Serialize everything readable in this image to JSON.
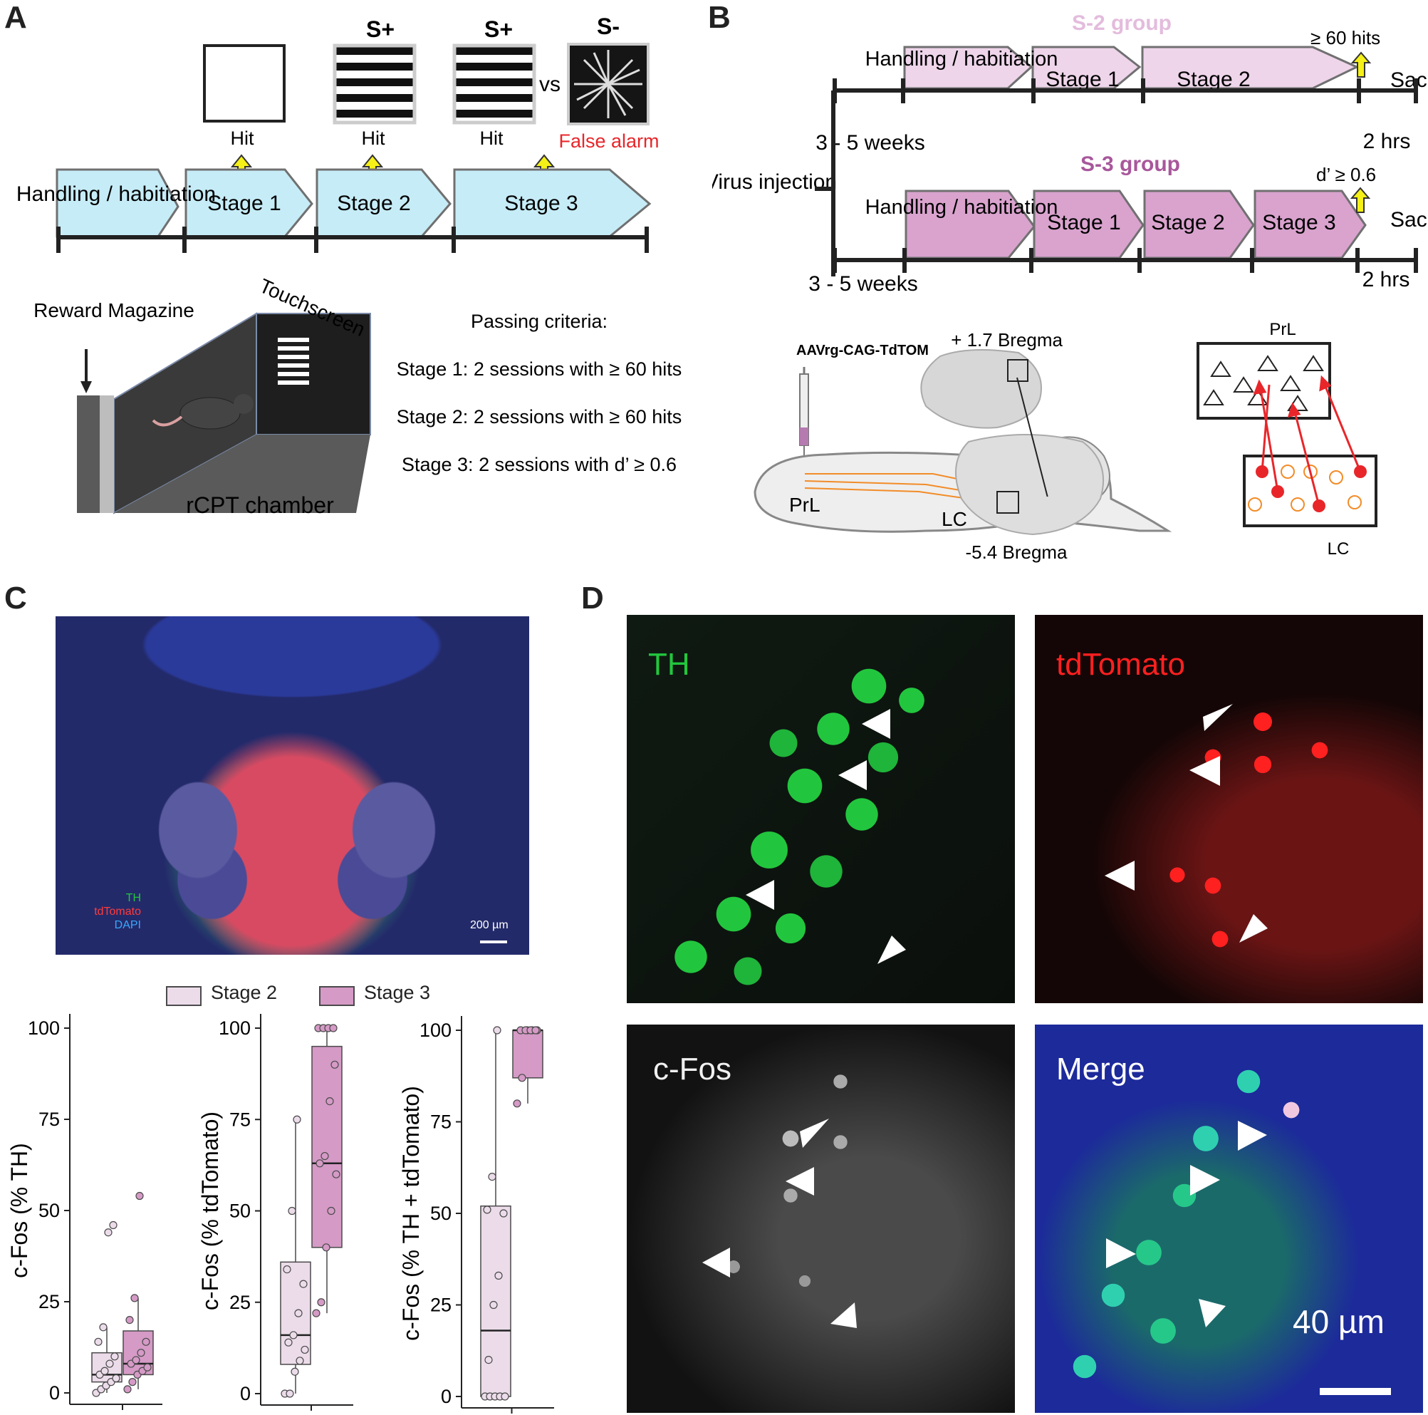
{
  "panels": {
    "a": "A",
    "b": "B",
    "c": "C",
    "d": "D"
  },
  "panelA": {
    "stimuli": [
      {
        "top_label": "",
        "bottom_label": "Hit"
      },
      {
        "top_label": "S+",
        "bottom_label": "Hit"
      },
      {
        "top_label": "S+",
        "bottom_label": "Hit"
      },
      {
        "top_label": "S-",
        "bottom_label": "False alarm"
      }
    ],
    "vs": "vs",
    "stages": [
      "Handling / habitiation",
      "Stage 1",
      "Stage 2",
      "Stage 3"
    ],
    "reward_label": "Reward Magazine",
    "touchscreen_label": "Touchscreen",
    "chamber_label": "rCPT chamber",
    "criteria_title": "Passing criteria:",
    "criteria": [
      "Stage 1: 2 sessions with ≥ 60 hits",
      "Stage 2: 2 sessions with ≥ 60 hits",
      "Stage 3: 2 sessions with d’ ≥ 0.6"
    ],
    "colors": {
      "stage_fill": "#c6ecf7",
      "arrow": "#f5f017",
      "false_alarm": "#e8262a"
    }
  },
  "panelB": {
    "s2_group": {
      "title": "S-2 group",
      "stages": [
        "Handling / habitiation",
        "Stage 1",
        "Stage 2"
      ],
      "criterion": "≥ 60 hits",
      "end": "Sac",
      "after": "2 hrs",
      "delay": "3 - 5 weeks"
    },
    "s3_group": {
      "title": "S-3 group",
      "stages": [
        "Handling / habitiation",
        "Stage 1",
        "Stage 2",
        "Stage 3"
      ],
      "criterion": "d’ ≥ 0.6",
      "end": "Sac",
      "after": "2 hrs",
      "delay": "3 - 5 weeks"
    },
    "virus": "Virus injection",
    "aav": "AAVrg-CAG-TdTOM",
    "prl": "PrL",
    "lc": "LC",
    "bregma_top": "+ 1.7 Bregma",
    "bregma_bottom": "-5.4 Bregma",
    "colors": {
      "s2": "#eed5ea",
      "s3": "#d9a3ce",
      "s2_title": "#e3bcdd",
      "s3_title": "#a8579b",
      "projection": "#e8262a",
      "tracer": "#f28c28"
    }
  },
  "panelC": {
    "channels": [
      "TH",
      "tdTomato",
      "DAPI"
    ],
    "scale": "200 µm",
    "legend": [
      "Stage 2",
      "Stage 3"
    ],
    "colors": {
      "stage2": "#ecdcea",
      "stage3": "#d59ac6",
      "stroke": "#4a4a4a"
    }
  },
  "chart_data": [
    {
      "type": "box",
      "ylabel": "c-Fos (% TH)",
      "ylim": [
        0,
        100
      ],
      "yticks": [
        0,
        25,
        50,
        75,
        100
      ],
      "series": [
        {
          "name": "Stage 2",
          "min": 0,
          "q1": 3,
          "median": 5,
          "q3": 11,
          "max": 18,
          "points": [
            0,
            1,
            2,
            3,
            4,
            5,
            6,
            8,
            10,
            14,
            18,
            44,
            46
          ]
        },
        {
          "name": "Stage 3",
          "min": 1,
          "q1": 5,
          "median": 8,
          "q3": 17,
          "max": 26,
          "points": [
            1,
            3,
            5,
            6,
            7,
            8,
            9,
            11,
            14,
            20,
            26,
            54
          ]
        }
      ]
    },
    {
      "type": "box",
      "ylabel": "c-Fos (% tdTomato)",
      "ylim": [
        0,
        100
      ],
      "yticks": [
        0,
        25,
        50,
        75,
        100
      ],
      "series": [
        {
          "name": "Stage 2",
          "min": 0,
          "q1": 8,
          "median": 16,
          "q3": 36,
          "max": 75,
          "points": [
            0,
            0,
            6,
            9,
            12,
            14,
            16,
            22,
            30,
            34,
            50,
            75
          ]
        },
        {
          "name": "Stage 3",
          "min": 22,
          "q1": 40,
          "median": 63,
          "q3": 95,
          "max": 100,
          "points": [
            22,
            25,
            40,
            50,
            60,
            63,
            65,
            80,
            90,
            100,
            100,
            100,
            100
          ]
        }
      ]
    },
    {
      "type": "box",
      "ylabel": "c-Fos (% TH + tdTomato)",
      "ylim": [
        0,
        100
      ],
      "yticks": [
        0,
        25,
        50,
        75,
        100
      ],
      "series": [
        {
          "name": "Stage 2",
          "min": 0,
          "q1": 0,
          "median": 18,
          "q3": 52,
          "max": 100,
          "points": [
            0,
            0,
            0,
            0,
            0,
            10,
            25,
            33,
            50,
            51,
            60,
            100
          ]
        },
        {
          "name": "Stage 3",
          "min": 80,
          "q1": 87,
          "median": 100,
          "q3": 100,
          "max": 100,
          "points": [
            80,
            87,
            100,
            100,
            100,
            100,
            100,
            100,
            100
          ]
        }
      ]
    }
  ],
  "panelD": {
    "labels": [
      "TH",
      "tdTomato",
      "c-Fos",
      "Merge"
    ],
    "scale": "40 µm",
    "colors": {
      "th": "#22c63e",
      "tdtomato": "#ff2020",
      "cfos": "#e8e8e8",
      "merge": "#ffffff"
    }
  }
}
